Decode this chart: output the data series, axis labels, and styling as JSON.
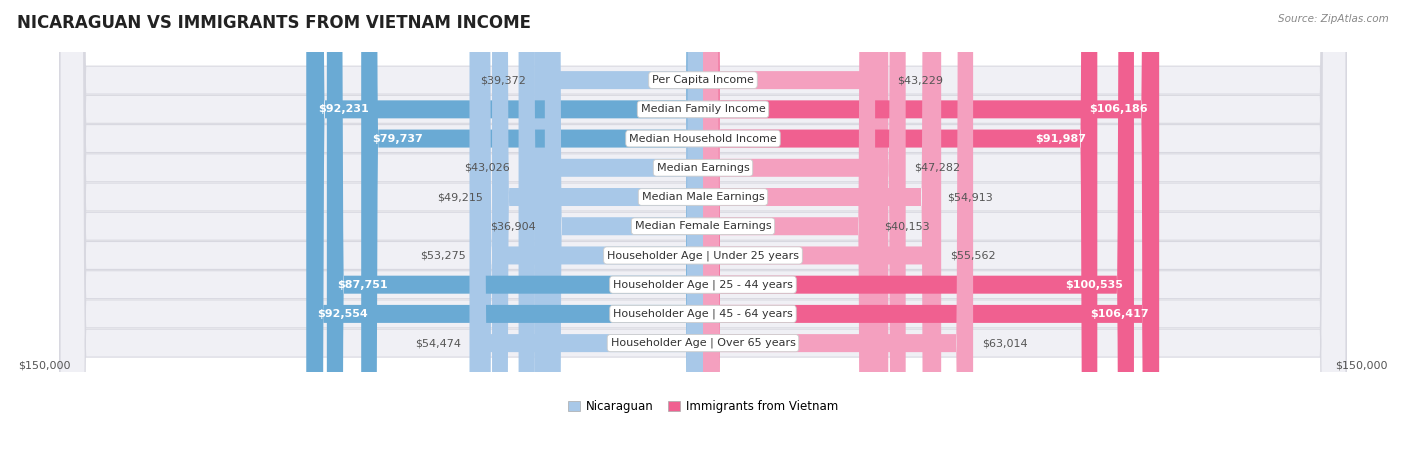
{
  "title": "NICARAGUAN VS IMMIGRANTS FROM VIETNAM INCOME",
  "source": "Source: ZipAtlas.com",
  "categories": [
    "Per Capita Income",
    "Median Family Income",
    "Median Household Income",
    "Median Earnings",
    "Median Male Earnings",
    "Median Female Earnings",
    "Householder Age | Under 25 years",
    "Householder Age | 25 - 44 years",
    "Householder Age | 45 - 64 years",
    "Householder Age | Over 65 years"
  ],
  "nicaraguan_values": [
    39372,
    92231,
    79737,
    43026,
    49215,
    36904,
    53275,
    87751,
    92554,
    54474
  ],
  "vietnam_values": [
    43229,
    106186,
    91987,
    47282,
    54913,
    40153,
    55562,
    100535,
    106417,
    63014
  ],
  "nic_bar_color_light": "#a8c8e8",
  "nic_bar_color_dark": "#6aaad4",
  "viet_bar_color_light": "#f4a0bf",
  "viet_bar_color_dark": "#f06090",
  "row_bg_color": "#f0f0f5",
  "row_edge_color": "#d8d8e0",
  "max_value": 150000,
  "xlabel_left": "$150,000",
  "xlabel_right": "$150,000",
  "legend_nicaraguan": "Nicaraguan",
  "legend_vietnam": "Immigrants from Vietnam",
  "title_fontsize": 12,
  "source_fontsize": 7.5,
  "label_fontsize": 8.5,
  "value_fontsize": 8,
  "category_fontsize": 8,
  "white_threshold_nic": 55000,
  "white_threshold_viet": 75000
}
